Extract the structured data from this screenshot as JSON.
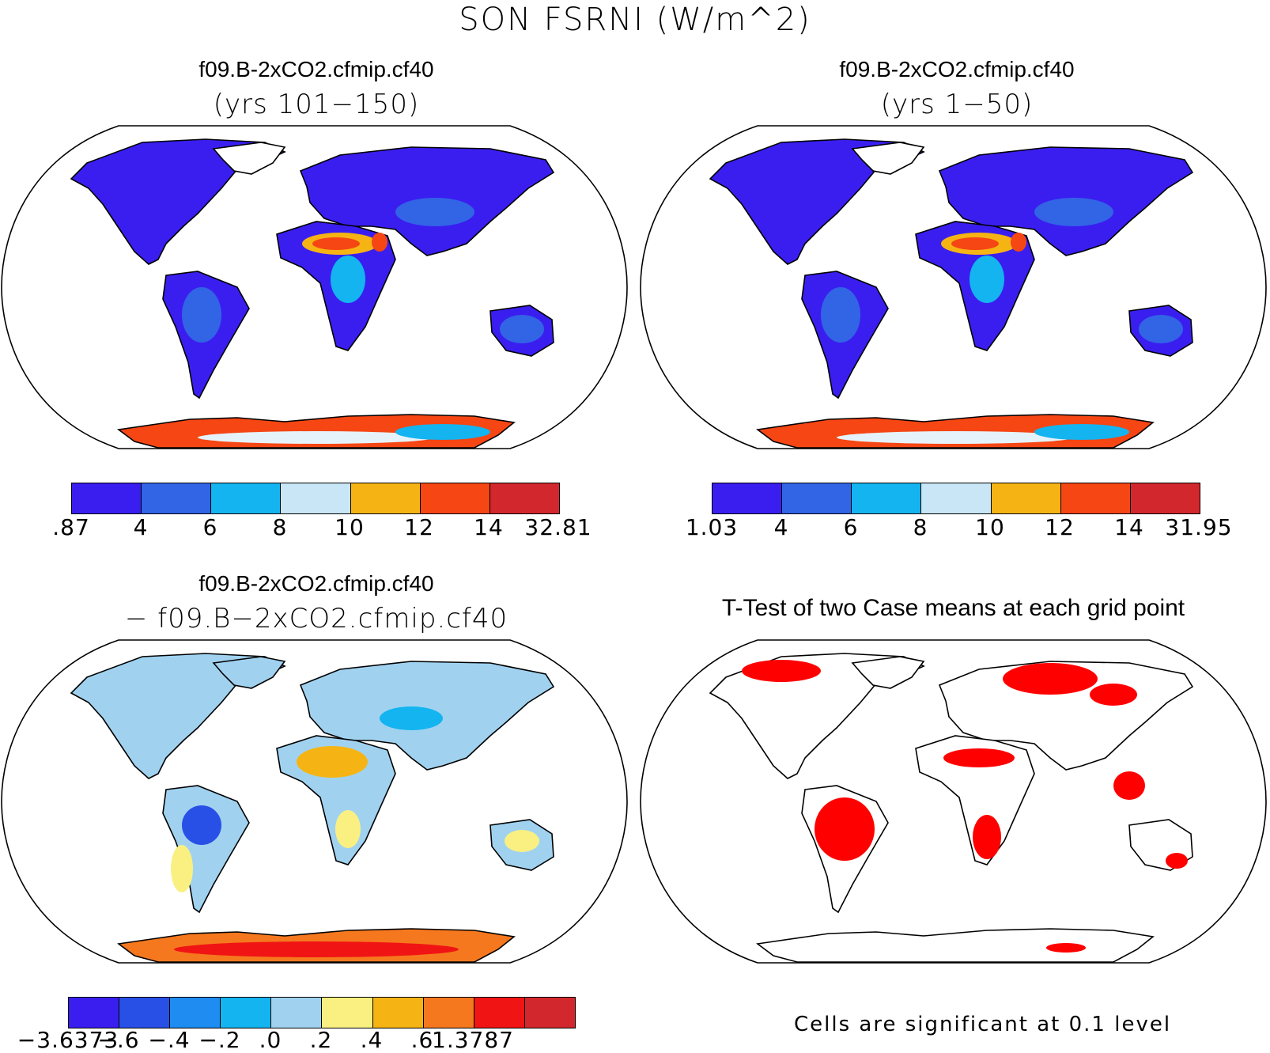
{
  "figure": {
    "title": "SON FSRNI (W/m^2)"
  },
  "panels": [
    {
      "title": "f09.B-2xCO2.cfmip.cf40",
      "subtitle": "(yrs 101−150)",
      "legend": {
        "colors": [
          "#3a1ef0",
          "#3264e6",
          "#14b4f0",
          "#c8e6f5",
          "#f5b414",
          "#f54614",
          "#d2282d"
        ],
        "labels": [
          ".87",
          "4",
          "6",
          "8",
          "10",
          "12",
          "14",
          "32.81"
        ]
      }
    },
    {
      "title": "f09.B-2xCO2.cfmip.cf40",
      "subtitle": "(yrs 1−50)",
      "legend": {
        "colors": [
          "#3a1ef0",
          "#3264e6",
          "#14b4f0",
          "#c8e6f5",
          "#f5b414",
          "#f54614",
          "#d2282d"
        ],
        "labels": [
          "1.03",
          "4",
          "6",
          "8",
          "10",
          "12",
          "14",
          "31.95"
        ]
      }
    },
    {
      "title": "f09.B-2xCO2.cfmip.cf40",
      "subtitle": "− f09.B−2xCO2.cfmip.cf40",
      "legend": {
        "colors": [
          "#3a1ef0",
          "#2850e6",
          "#1e8cf0",
          "#14b4f0",
          "#a0d2f0",
          "#faf082",
          "#f5b414",
          "#f5781e",
          "#f01414",
          "#d2282d"
        ],
        "labels": [
          "−3.6373",
          "−.6",
          "−.4",
          "−.2",
          ".0",
          ".2",
          ".4",
          ".6",
          "1.3787"
        ]
      }
    },
    {
      "title": "T-Test of two Case means at each grid point",
      "note": "Cells are significant at 0.1 level",
      "significance_color": "#ff0000"
    }
  ]
}
